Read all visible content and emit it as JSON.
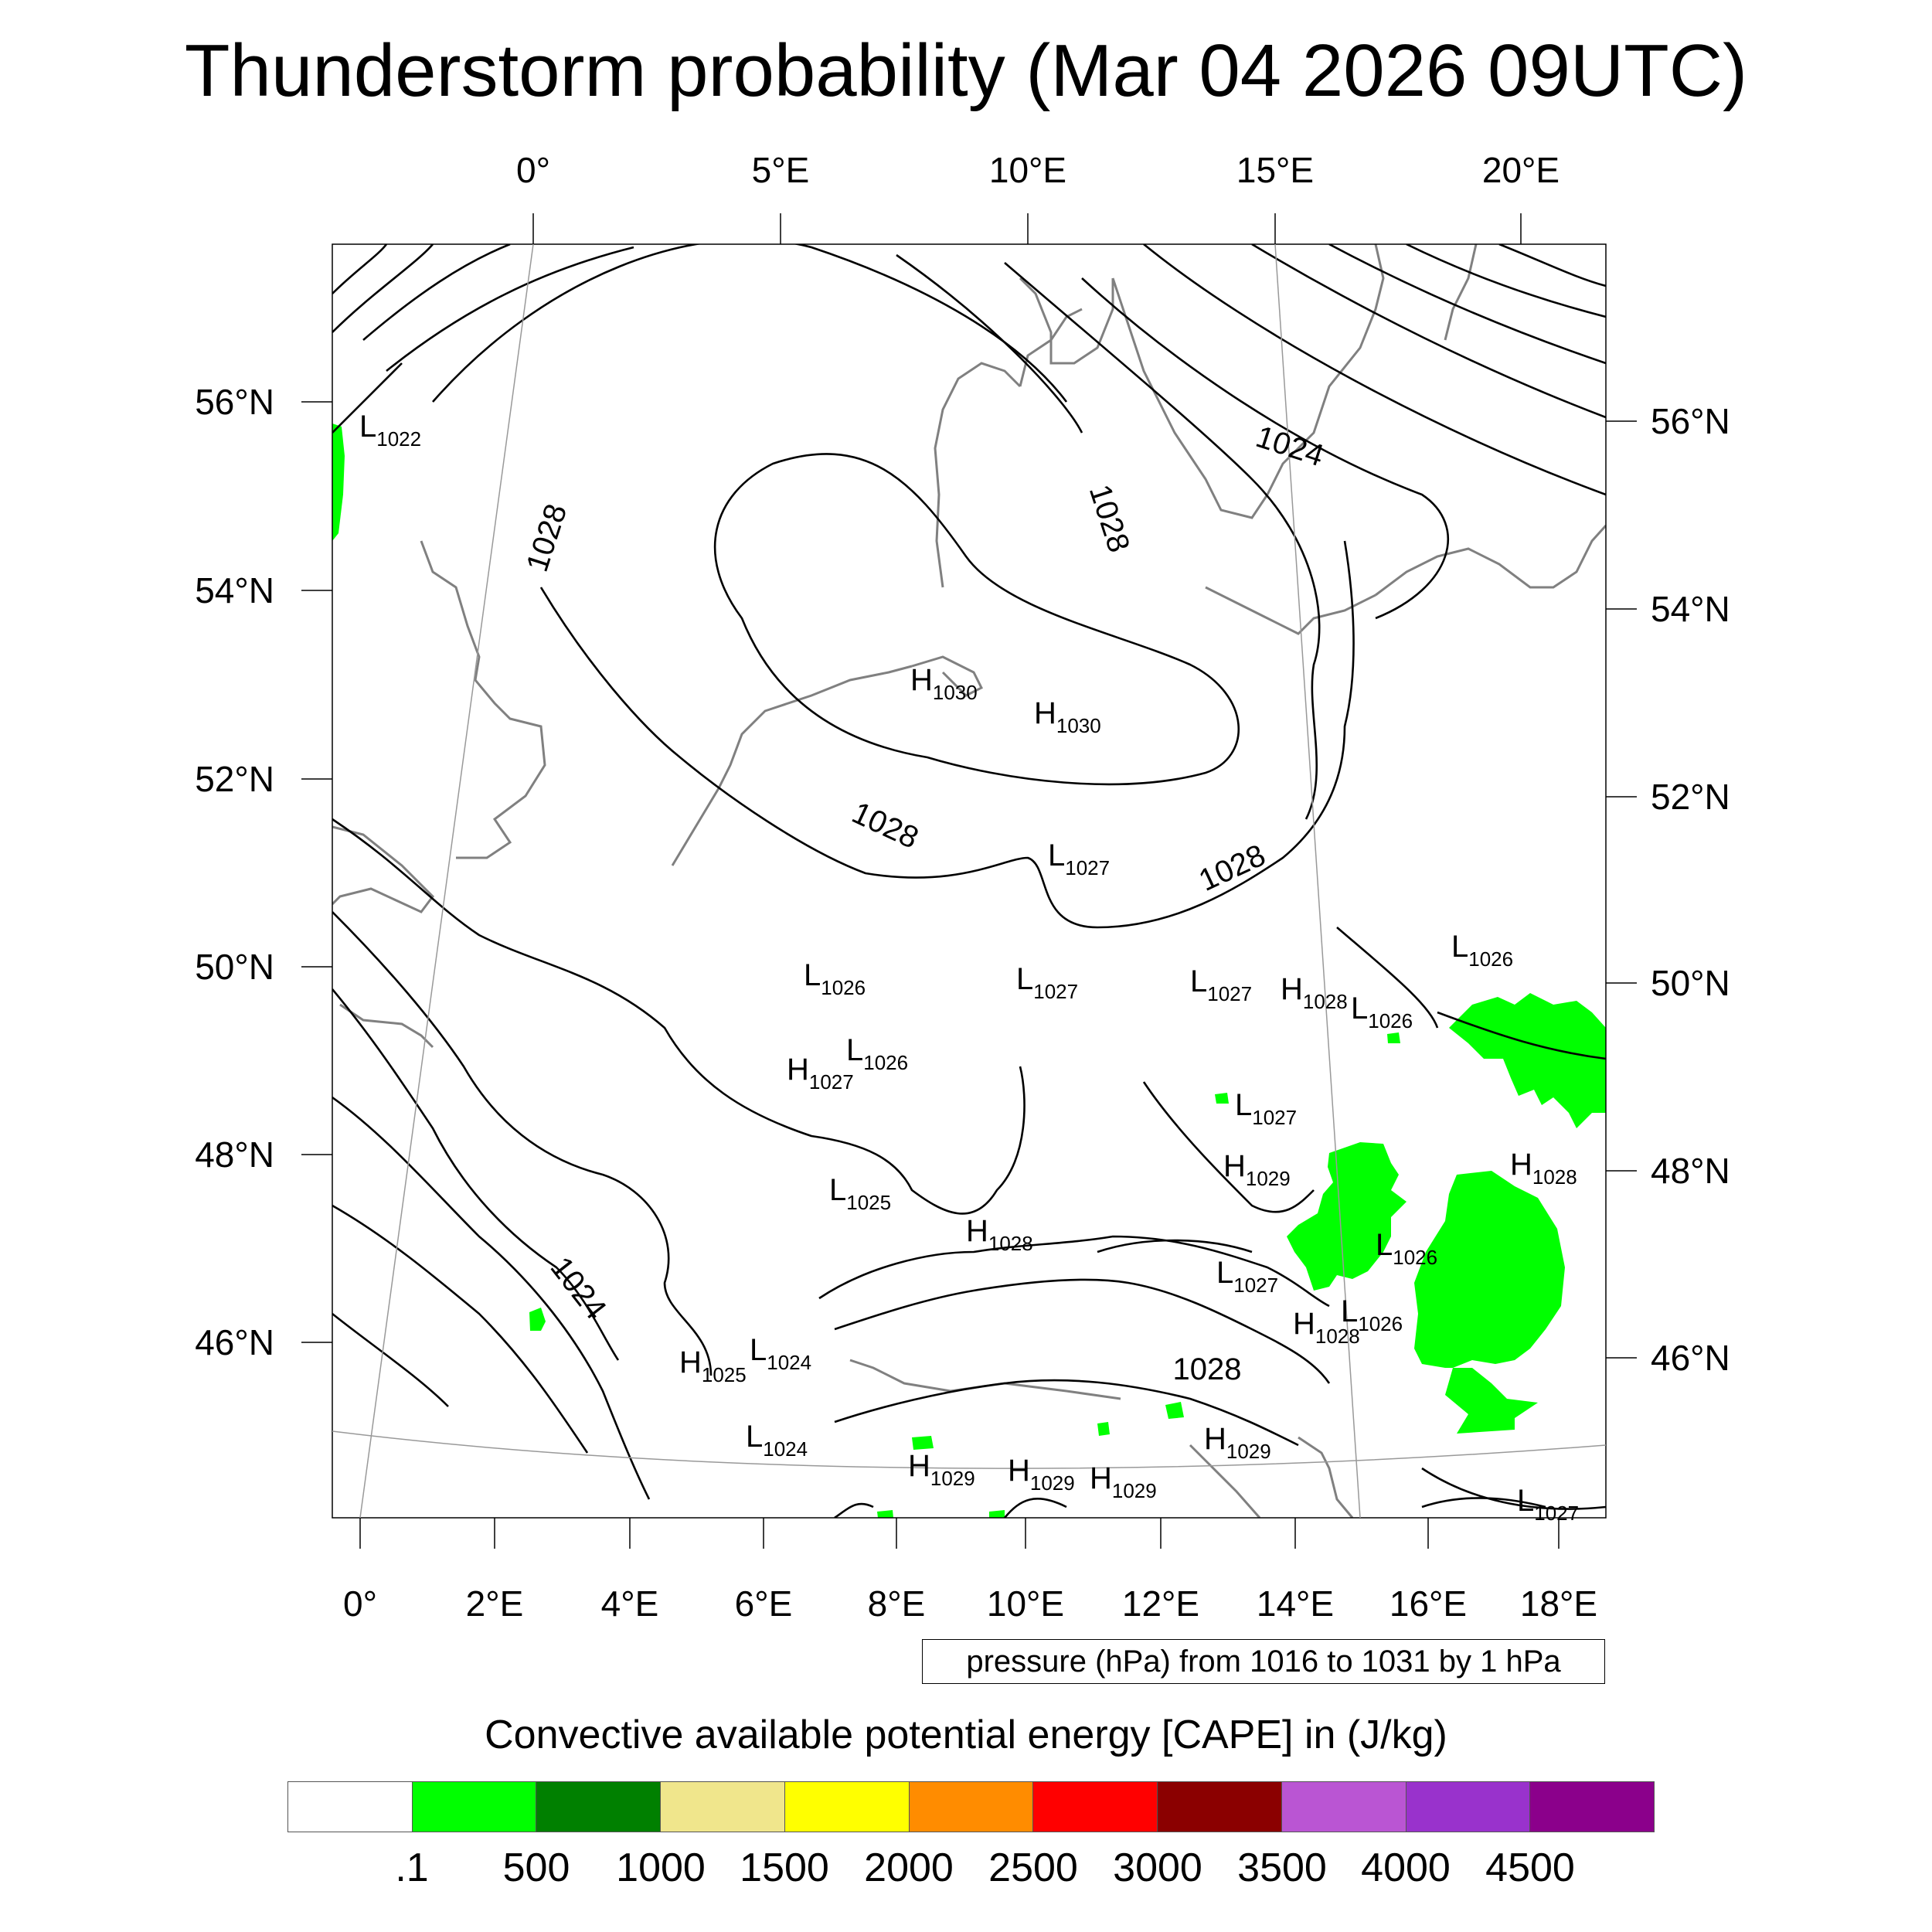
{
  "title": "Thunderstorm probability (Mar 04 2026 09UTC)",
  "top_lon_labels": [
    "0°",
    "5°E",
    "10°E",
    "15°E",
    "20°E"
  ],
  "bottom_lon_labels": [
    "0°",
    "2°E",
    "4°E",
    "6°E",
    "8°E",
    "10°E",
    "12°E",
    "14°E",
    "16°E",
    "18°E"
  ],
  "left_lat_labels": [
    "56°N",
    "54°N",
    "52°N",
    "50°N",
    "48°N",
    "46°N"
  ],
  "right_lat_labels": [
    "56°N",
    "54°N",
    "52°N",
    "50°N",
    "48°N",
    "46°N"
  ],
  "isobar_labels": [
    "1028",
    "1024",
    "1028",
    "1028",
    "1028",
    "1024",
    "1028"
  ],
  "pressure_centers": [
    {
      "type": "L",
      "value": "1022"
    },
    {
      "type": "H",
      "value": "1030"
    },
    {
      "type": "H",
      "value": "1030"
    },
    {
      "type": "L",
      "value": "1027"
    },
    {
      "type": "L",
      "value": "1026"
    },
    {
      "type": "L",
      "value": "1026"
    },
    {
      "type": "L",
      "value": "1026"
    },
    {
      "type": "L",
      "value": "1027"
    },
    {
      "type": "L",
      "value": "1027"
    },
    {
      "type": "H",
      "value": "1028"
    },
    {
      "type": "L",
      "value": "1026"
    },
    {
      "type": "H",
      "value": "1027"
    },
    {
      "type": "L",
      "value": "1027"
    },
    {
      "type": "H",
      "value": "1029"
    },
    {
      "type": "H",
      "value": "1028"
    },
    {
      "type": "L",
      "value": "1025"
    },
    {
      "type": "H",
      "value": "1028"
    },
    {
      "type": "L",
      "value": "1026"
    },
    {
      "type": "L",
      "value": "1027"
    },
    {
      "type": "L",
      "value": "1026"
    },
    {
      "type": "H",
      "value": "1028"
    },
    {
      "type": "H",
      "value": "1025"
    },
    {
      "type": "L",
      "value": "1024"
    },
    {
      "type": "L",
      "value": "1024"
    },
    {
      "type": "H",
      "value": "1029"
    },
    {
      "type": "H",
      "value": "1029"
    },
    {
      "type": "H",
      "value": "1029"
    },
    {
      "type": "H",
      "value": "1029"
    },
    {
      "type": "L",
      "value": "1027"
    }
  ],
  "contour_note": "pressure (hPa) from 1016 to 1031 by 1 hPa",
  "colorbar": {
    "title": "Convective available potential energy [CAPE] in (J/kg)",
    "colors": [
      "#ffffff",
      "#00ff00",
      "#008000",
      "#f0e68c",
      "#ffff00",
      "#ff8c00",
      "#ff0000",
      "#8b0000",
      "#ba55d3",
      "#9932cc",
      "#8b008b"
    ],
    "tick_labels": [
      ".1",
      "500",
      "1000",
      "1500",
      "2000",
      "2500",
      "3000",
      "3500",
      "4000",
      "4500"
    ]
  },
  "colors": {
    "cape_low": "#00ff00",
    "isobar": "#000000",
    "coastline": "#808080"
  }
}
